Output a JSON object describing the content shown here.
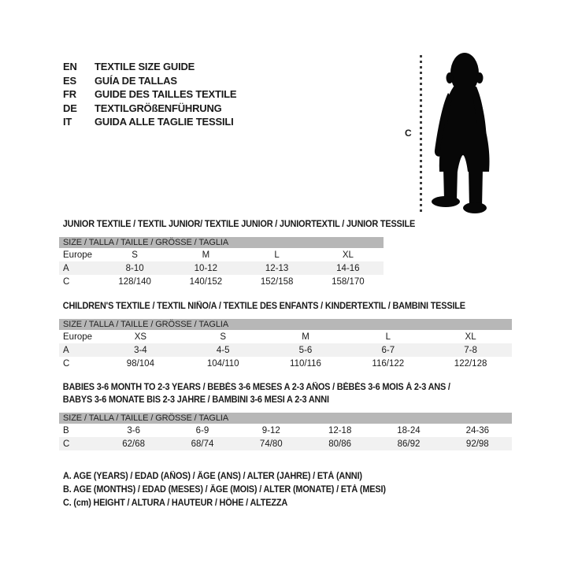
{
  "languages": [
    {
      "code": "EN",
      "label": "TEXTILE SIZE GUIDE"
    },
    {
      "code": "ES",
      "label": "GUÍA DE TALLAS"
    },
    {
      "code": "FR",
      "label": "GUIDE DES TAILLES TEXTILE"
    },
    {
      "code": "DE",
      "label": "TEXTILGRÖßENFÜHRUNG"
    },
    {
      "code": "IT",
      "label": "GUIDA ALLE TAGLIE TESSILI"
    }
  ],
  "figure": {
    "icon": "toddler-silhouette",
    "measure_label": "C"
  },
  "sections": [
    {
      "heading_lines": [
        "JUNIOR TEXTILE / TEXTIL JUNIOR/ TEXTILE JUNIOR / JUNIORTEXTIL / JUNIOR TESSILE"
      ],
      "table": {
        "header": "SIZE / TALLA / TAILLE / GRÖSSE / TAGLIA",
        "rows": [
          {
            "label": "Europe",
            "values": [
              "S",
              "M",
              "L",
              "XL"
            ]
          },
          {
            "label": "A",
            "values": [
              "8-10",
              "10-12",
              "12-13",
              "14-16"
            ]
          },
          {
            "label": "C",
            "values": [
              "128/140",
              "140/152",
              "152/158",
              "158/170"
            ]
          }
        ]
      }
    },
    {
      "heading_lines": [
        "CHILDREN'S TEXTILE / TEXTIL NIÑO/A / TEXTILE DES ENFANTS / KINDERTEXTIL / BAMBINI TESSILE"
      ],
      "table": {
        "header": "SIZE / TALLA / TAILLE / GRÖSSE / TAGLIA",
        "rows": [
          {
            "label": "Europe",
            "values": [
              "XS",
              "S",
              "M",
              "L",
              "XL"
            ]
          },
          {
            "label": "A",
            "values": [
              "3-4",
              "4-5",
              "5-6",
              "6-7",
              "7-8"
            ]
          },
          {
            "label": "C",
            "values": [
              "98/104",
              "104/110",
              "110/116",
              "116/122",
              "122/128"
            ]
          }
        ]
      }
    },
    {
      "heading_lines": [
        "BABIES 3-6 MONTH TO 2-3 YEARS / BEBÉS 3-6 MESES A 2-3 AÑOS / BÉBÉS 3-6 MOIS À 2-3 ANS /",
        "BABYS 3-6 MONATE BIS 2-3 JAHRE / BAMBINI 3-6 MESI A 2-3 ANNI"
      ],
      "table": {
        "header": "SIZE / TALLA / TAILLE / GRÖSSE / TAGLIA",
        "rows": [
          {
            "label": "B",
            "values": [
              "3-6",
              "6-9",
              "9-12",
              "12-18",
              "18-24",
              "24-36"
            ]
          },
          {
            "label": "C",
            "values": [
              "62/68",
              "68/74",
              "74/80",
              "80/86",
              "86/92",
              "92/98"
            ]
          }
        ]
      }
    }
  ],
  "notes": [
    "A. AGE (YEARS) / EDAD (AÑOS) / ÂGE (ANS) / ALTER (JAHRE) / ETÀ (ANNI)",
    "B. AGE (MONTHS) / EDAD (MESES) / ÂGE (MOIS) / ALTER (MONATE) / ETÀ (MESI)",
    "C. (cm) HEIGHT / ALTURA / HAUTEUR / HÖHE / ALTEZZA"
  ],
  "colors": {
    "table_header_bg": "#b7b7b7",
    "row_stripe_bg": "#f1f1f1",
    "text": "#1a1a1a"
  }
}
